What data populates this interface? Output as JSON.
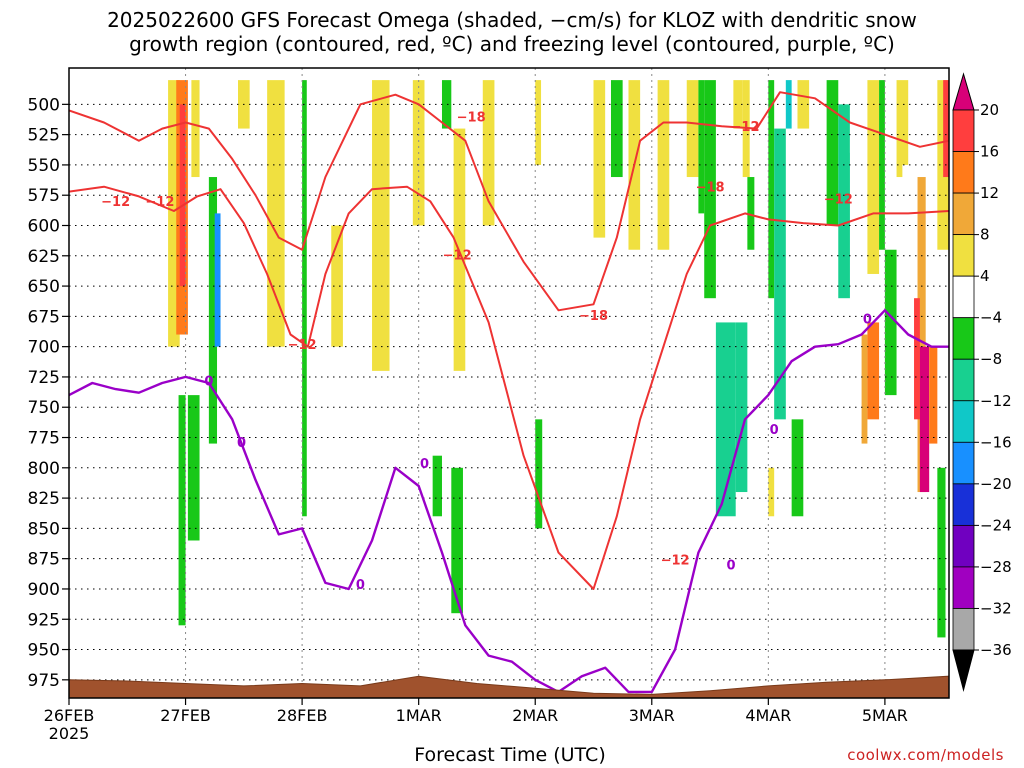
{
  "title_line1": "2025022600 GFS Forecast Omega (shaded, −cm/s) for KLOZ with dendritic snow",
  "title_line2": "growth region (contoured, red, ºC) and freezing level (contoured, purple, ºC)",
  "x_axis_title": "Forecast Time (UTC)",
  "credit": "coolwx.com/models",
  "chart_data": {
    "type": "heatmap",
    "title": "2025022600 GFS Forecast Omega (shaded, −cm/s) for KLOZ with dendritic snow growth region (contoured, red, ºC) and freezing level (contoured, purple, ºC)",
    "xlabel": "Forecast Time (UTC)",
    "ylabel": "",
    "x_ticks": [
      "26FEB",
      "27FEB",
      "28FEB",
      "1MAR",
      "2MAR",
      "3MAR",
      "4MAR",
      "5MAR"
    ],
    "x_tick_sublabel": "2025",
    "x_range_days": [
      0,
      7.55
    ],
    "y_ticks": [
      500,
      525,
      550,
      575,
      600,
      625,
      650,
      675,
      700,
      725,
      750,
      775,
      800,
      825,
      850,
      875,
      900,
      925,
      950,
      975
    ],
    "y_range": [
      470,
      990
    ],
    "y_inverted": true,
    "grid": true,
    "colorbar": {
      "tick_labels": [
        "20",
        "16",
        "12",
        "8",
        "4",
        "−4",
        "−8",
        "−12",
        "−16",
        "−20",
        "−24",
        "−28",
        "−32",
        "−36"
      ],
      "colors": [
        "#d80078",
        "#ff3e3e",
        "#ff7a1a",
        "#f0a838",
        "#f0e040",
        "#ffffff",
        "#18c818",
        "#18d090",
        "#10c8c8",
        "#1890ff",
        "#1830d8",
        "#7000c0",
        "#a000c0",
        "#a8a8a8",
        "#000000"
      ]
    },
    "contour_labels_red": [
      "−12",
      "−18",
      "−12",
      "−12",
      "−18",
      "−12",
      "−12",
      "−18",
      "−12",
      "−12"
    ],
    "contour_labels_purple": [
      "0",
      "0",
      "0",
      "0",
      "0",
      "0",
      "0"
    ],
    "series": [
      {
        "name": "dendritic −12ºC (lower)",
        "x": [
          0,
          0.3,
          0.6,
          0.9,
          1.1,
          1.3,
          1.5,
          1.7,
          1.9,
          2.05,
          2.2,
          2.4,
          2.6,
          2.9,
          3.1,
          3.3,
          3.6,
          3.9,
          4.2,
          4.5,
          4.7,
          4.9,
          5.1,
          5.3,
          5.5,
          5.8,
          6.0,
          6.3,
          6.6,
          6.9,
          7.2,
          7.55
        ],
        "y": [
          572,
          568,
          576,
          588,
          576,
          570,
          598,
          640,
          690,
          700,
          640,
          590,
          570,
          568,
          580,
          610,
          680,
          790,
          870,
          900,
          840,
          760,
          700,
          640,
          600,
          590,
          595,
          598,
          600,
          590,
          590,
          588
        ]
      },
      {
        "name": "dendritic −18ºC (upper)",
        "x": [
          0,
          0.3,
          0.6,
          0.8,
          1.0,
          1.2,
          1.4,
          1.6,
          1.8,
          2.0,
          2.2,
          2.5,
          2.8,
          3.0,
          3.2,
          3.4,
          3.6,
          3.9,
          4.2,
          4.5,
          4.7,
          4.9,
          5.1,
          5.3,
          5.6,
          5.9,
          6.1,
          6.4,
          6.7,
          7.0,
          7.3,
          7.55
        ],
        "y": [
          505,
          515,
          530,
          520,
          515,
          520,
          545,
          575,
          610,
          620,
          560,
          500,
          492,
          500,
          515,
          530,
          580,
          630,
          670,
          665,
          610,
          530,
          515,
          515,
          518,
          520,
          490,
          495,
          515,
          525,
          535,
          530
        ]
      },
      {
        "name": "freezing level 0ºC",
        "x": [
          0,
          0.2,
          0.4,
          0.6,
          0.8,
          1.0,
          1.2,
          1.4,
          1.6,
          1.8,
          2.0,
          2.2,
          2.4,
          2.6,
          2.8,
          3.0,
          3.2,
          3.4,
          3.6,
          3.8,
          4.0,
          4.2,
          4.4,
          4.6,
          4.8,
          5.0,
          5.2,
          5.4,
          5.6,
          5.8,
          6.0,
          6.2,
          6.4,
          6.6,
          6.8,
          7.0,
          7.2,
          7.4,
          7.55
        ],
        "y": [
          740,
          730,
          735,
          738,
          730,
          725,
          730,
          760,
          810,
          855,
          850,
          895,
          900,
          860,
          800,
          815,
          870,
          930,
          955,
          960,
          975,
          985,
          972,
          965,
          985,
          985,
          950,
          870,
          830,
          760,
          740,
          712,
          700,
          698,
          690,
          670,
          690,
          700,
          700
        ]
      }
    ]
  }
}
